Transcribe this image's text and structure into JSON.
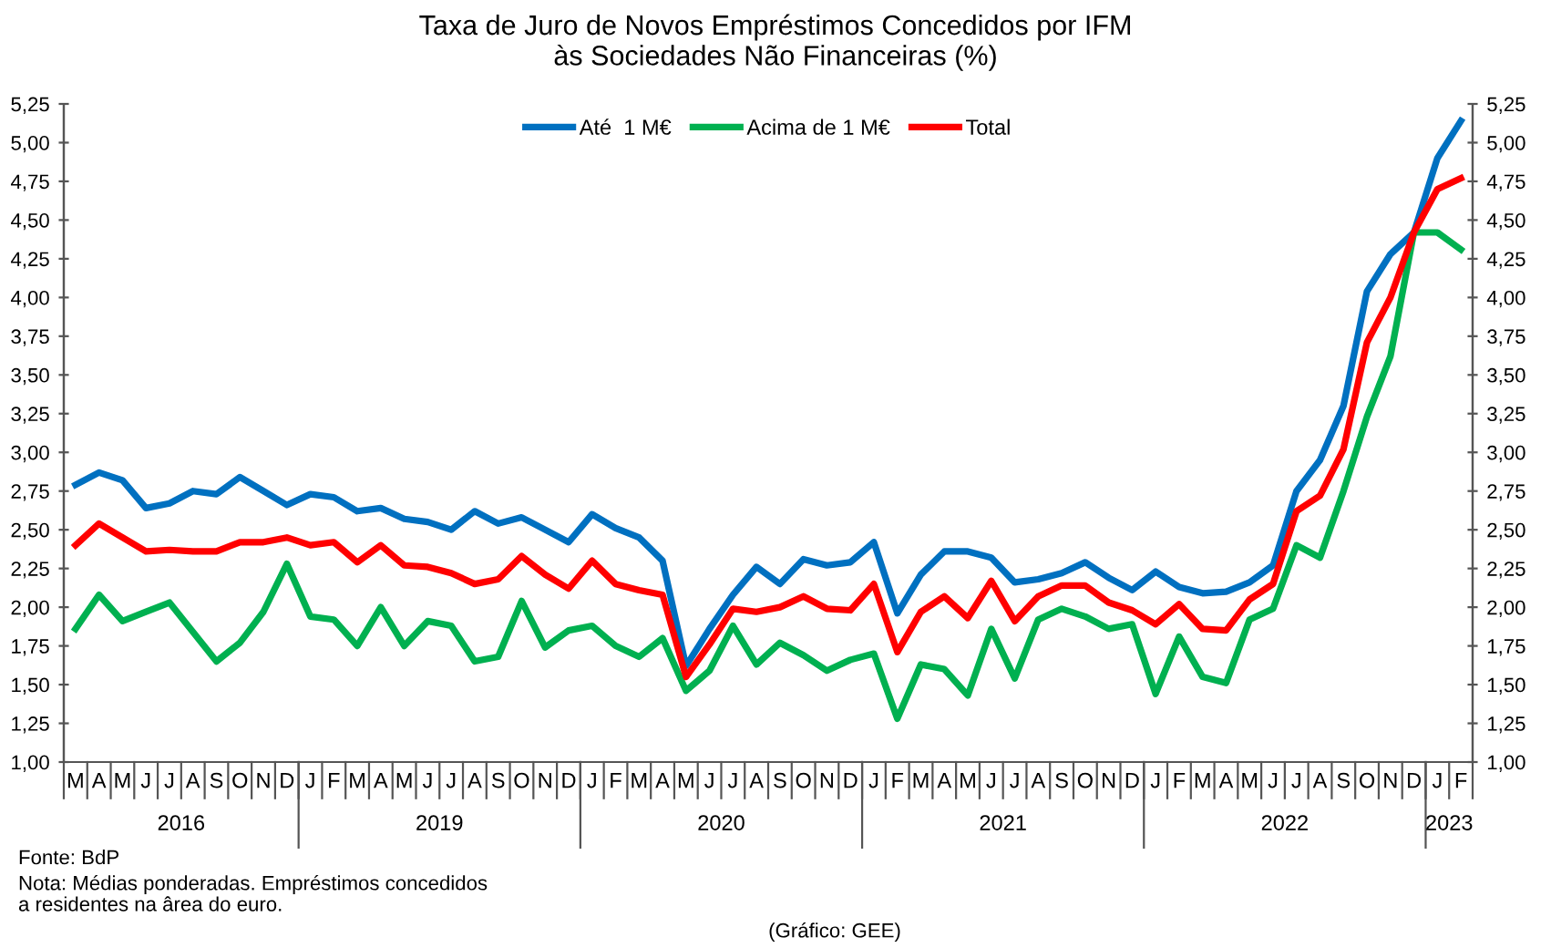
{
  "chart_data": {
    "type": "line",
    "title": "Taxa de Juro de Novos Empréstimos Concedidos por IFM\nàs Sociedades Não Financeiras (%)",
    "categories": [
      "M",
      "A",
      "M",
      "J",
      "J",
      "A",
      "S",
      "O",
      "N",
      "D",
      "J",
      "F",
      "M",
      "A",
      "M",
      "J",
      "J",
      "A",
      "S",
      "O",
      "N",
      "D",
      "J",
      "F",
      "M",
      "A",
      "M",
      "J",
      "J",
      "A",
      "S",
      "O",
      "N",
      "D",
      "J",
      "F",
      "M",
      "A",
      "M",
      "J",
      "J",
      "A",
      "S",
      "O",
      "N",
      "D",
      "J",
      "F",
      "M",
      "A",
      "M",
      "J",
      "J",
      "A",
      "S",
      "O",
      "N",
      "D",
      "J",
      "F"
    ],
    "series": [
      {
        "name": "Até  1 M€",
        "color": "#0070c0",
        "values": [
          2.79,
          2.87,
          2.82,
          2.64,
          2.67,
          2.75,
          2.73,
          2.84,
          2.75,
          2.66,
          2.73,
          2.71,
          2.62,
          2.64,
          2.57,
          2.55,
          2.5,
          2.62,
          2.54,
          2.58,
          2.5,
          2.42,
          2.6,
          2.51,
          2.45,
          2.3,
          1.62,
          1.86,
          2.08,
          2.26,
          2.15,
          2.31,
          2.27,
          2.29,
          2.42,
          1.96,
          2.21,
          2.36,
          2.36,
          2.32,
          2.16,
          2.18,
          2.22,
          2.29,
          2.19,
          2.11,
          2.23,
          2.13,
          2.09,
          2.1,
          2.16,
          2.27,
          2.75,
          2.95,
          3.3,
          4.04,
          4.28,
          4.42,
          4.9,
          5.14
        ]
      },
      {
        "name": "Acima de 1 M€",
        "color": "#00b050",
        "values": [
          1.86,
          2.08,
          1.91,
          1.97,
          2.03,
          1.84,
          1.65,
          1.77,
          1.97,
          2.28,
          1.94,
          1.92,
          1.75,
          2.0,
          1.75,
          1.91,
          1.88,
          1.65,
          1.68,
          2.04,
          1.74,
          1.85,
          1.88,
          1.75,
          1.68,
          1.8,
          1.46,
          1.59,
          1.88,
          1.63,
          1.77,
          1.69,
          1.59,
          1.66,
          1.7,
          1.28,
          1.63,
          1.6,
          1.43,
          1.86,
          1.54,
          1.92,
          1.99,
          1.94,
          1.86,
          1.89,
          1.44,
          1.81,
          1.55,
          1.51,
          1.92,
          1.99,
          2.4,
          2.32,
          2.75,
          3.23,
          3.62,
          4.42,
          4.42,
          4.31
        ]
      },
      {
        "name": "Total",
        "color": "#ff0000",
        "values": [
          2.4,
          2.54,
          2.45,
          2.36,
          2.37,
          2.36,
          2.36,
          2.42,
          2.42,
          2.45,
          2.4,
          2.42,
          2.29,
          2.4,
          2.27,
          2.26,
          2.22,
          2.15,
          2.18,
          2.33,
          2.21,
          2.12,
          2.3,
          2.15,
          2.11,
          2.08,
          1.55,
          1.76,
          1.99,
          1.97,
          2.0,
          2.07,
          1.99,
          1.98,
          2.15,
          1.71,
          1.97,
          2.07,
          1.93,
          2.17,
          1.91,
          2.07,
          2.14,
          2.14,
          2.03,
          1.98,
          1.89,
          2.02,
          1.86,
          1.85,
          2.05,
          2.15,
          2.62,
          2.72,
          3.02,
          3.71,
          4.0,
          4.42,
          4.7,
          4.77
        ]
      }
    ],
    "ylim": [
      1.0,
      5.25
    ],
    "yticks": [
      {
        "value": 1.0,
        "label": "1,00"
      },
      {
        "value": 1.25,
        "label": "1,25"
      },
      {
        "value": 1.5,
        "label": "1,50"
      },
      {
        "value": 1.75,
        "label": "1,75"
      },
      {
        "value": 2.0,
        "label": "2,00"
      },
      {
        "value": 2.25,
        "label": "2,25"
      },
      {
        "value": 2.5,
        "label": "2,50"
      },
      {
        "value": 2.75,
        "label": "2,75"
      },
      {
        "value": 3.0,
        "label": "3,00"
      },
      {
        "value": 3.25,
        "label": "3,25"
      },
      {
        "value": 3.5,
        "label": "3,50"
      },
      {
        "value": 3.75,
        "label": "3,75"
      },
      {
        "value": 4.0,
        "label": "4,00"
      },
      {
        "value": 4.25,
        "label": "4,25"
      },
      {
        "value": 4.5,
        "label": "4,50"
      },
      {
        "value": 4.75,
        "label": "4,75"
      },
      {
        "value": 5.0,
        "label": "5,00"
      },
      {
        "value": 5.25,
        "label": "5,25"
      }
    ],
    "y2lim": [
      1.0,
      5.25
    ],
    "y2ticks": [
      {
        "value": 1.0,
        "label": "1,00"
      },
      {
        "value": 1.25,
        "label": "1,25"
      },
      {
        "value": 1.5,
        "label": "1,50"
      },
      {
        "value": 1.75,
        "label": "1,75"
      },
      {
        "value": 2.0,
        "label": "2,00"
      },
      {
        "value": 2.25,
        "label": "2,25"
      },
      {
        "value": 2.5,
        "label": "2,50"
      },
      {
        "value": 2.75,
        "label": "2,75"
      },
      {
        "value": 3.0,
        "label": "3,00"
      },
      {
        "value": 3.25,
        "label": "3,25"
      },
      {
        "value": 3.5,
        "label": "3,50"
      },
      {
        "value": 3.75,
        "label": "3,75"
      },
      {
        "value": 4.0,
        "label": "4,00"
      },
      {
        "value": 4.25,
        "label": "4,25"
      },
      {
        "value": 4.5,
        "label": "4,50"
      },
      {
        "value": 4.75,
        "label": "4,75"
      },
      {
        "value": 5.0,
        "label": "5,00"
      },
      {
        "value": 5.25,
        "label": "5,25"
      }
    ],
    "grid": false,
    "legend": "top",
    "marker": "none",
    "line_style": "solid",
    "annotations": [
      "2016",
      "2019",
      "2020",
      "2021",
      "2022",
      "2023",
      "Fonte: BdP",
      "Nota: Médias ponderadas. Empréstimos concedidos\na residentes na ârea do euro.",
      "(Gráfico: GEE)"
    ]
  }
}
